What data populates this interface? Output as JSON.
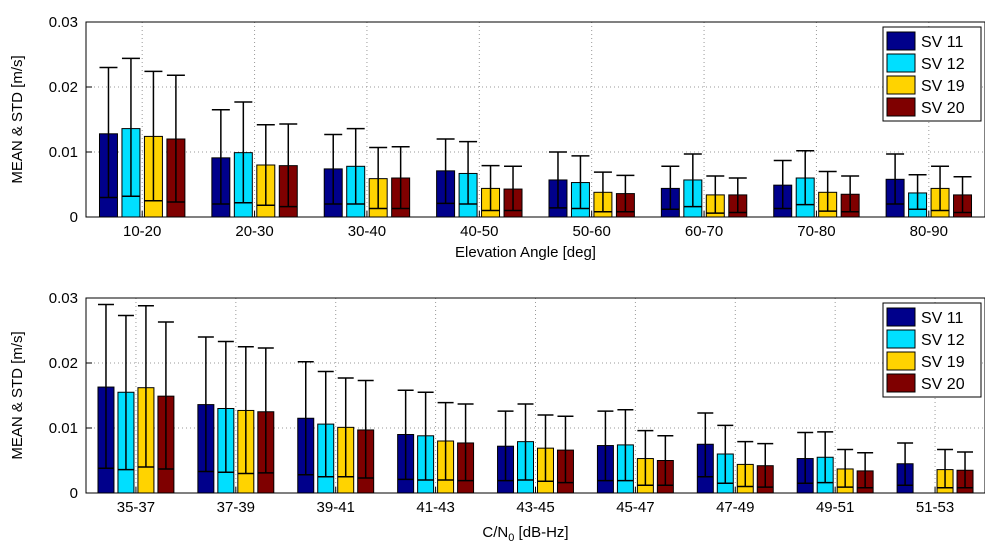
{
  "chart_data": [
    {
      "type": "bar",
      "title": "",
      "xlabel": "Elevation Angle [deg]",
      "ylabel": "MEAN & STD [m/s]",
      "ylim": [
        0,
        0.03
      ],
      "yticks": [
        0,
        0.01,
        0.02,
        0.03
      ],
      "ytick_labels": [
        "0",
        "0.01",
        "0.02",
        "0.03"
      ],
      "grid": "dotted",
      "legend_position": "top-right",
      "categories": [
        "10-20",
        "20-30",
        "30-40",
        "40-50",
        "50-60",
        "60-70",
        "70-80",
        "80-90"
      ],
      "series": [
        {
          "name": "SV 11",
          "color": "#00008b",
          "values": [
            0.0128,
            0.0091,
            0.0074,
            0.0071,
            0.0057,
            0.0044,
            0.0049,
            0.0058
          ],
          "upper": [
            0.023,
            0.0165,
            0.0127,
            0.012,
            0.01,
            0.0078,
            0.0087,
            0.0097
          ],
          "lower": [
            0.003,
            0.002,
            0.002,
            0.0021,
            0.0014,
            0.0012,
            0.0013,
            0.002
          ]
        },
        {
          "name": "SV 12",
          "color": "#00dfff",
          "values": [
            0.0136,
            0.0099,
            0.0078,
            0.0067,
            0.0053,
            0.0057,
            0.006,
            0.0037
          ],
          "upper": [
            0.0244,
            0.0177,
            0.0136,
            0.0116,
            0.0094,
            0.0097,
            0.0102,
            0.0065
          ],
          "lower": [
            0.0032,
            0.0022,
            0.002,
            0.002,
            0.0013,
            0.0016,
            0.0019,
            0.0012
          ]
        },
        {
          "name": "SV 19",
          "color": "#ffd300",
          "values": [
            0.0124,
            0.008,
            0.0059,
            0.0044,
            0.0038,
            0.0034,
            0.0038,
            0.0044
          ],
          "upper": [
            0.0224,
            0.0142,
            0.0107,
            0.0079,
            0.0069,
            0.0063,
            0.007,
            0.0078
          ],
          "lower": [
            0.0025,
            0.0018,
            0.0013,
            0.001,
            0.0008,
            0.0006,
            0.0009,
            0.001
          ]
        },
        {
          "name": "SV 20",
          "color": "#7f0000",
          "values": [
            0.012,
            0.0079,
            0.006,
            0.0043,
            0.0036,
            0.0034,
            0.0035,
            0.0034
          ],
          "upper": [
            0.0218,
            0.0143,
            0.0108,
            0.0078,
            0.0064,
            0.006,
            0.0063,
            0.0062
          ],
          "lower": [
            0.0023,
            0.0016,
            0.0013,
            0.001,
            0.0008,
            0.0007,
            0.0008,
            0.0007
          ]
        }
      ]
    },
    {
      "type": "bar",
      "title": "",
      "xlabel": "C/N",
      "xlabel_sub": "0",
      "xlabel_unit": "[dB-Hz]",
      "ylabel": "MEAN & STD [m/s]",
      "ylim": [
        0,
        0.03
      ],
      "yticks": [
        0,
        0.01,
        0.02,
        0.03
      ],
      "ytick_labels": [
        "0",
        "0.01",
        "0.02",
        "0.03"
      ],
      "grid": "dotted",
      "legend_position": "top-right",
      "categories": [
        "35-37",
        "37-39",
        "39-41",
        "41-43",
        "43-45",
        "45-47",
        "47-49",
        "49-51",
        "51-53"
      ],
      "series": [
        {
          "name": "SV 11",
          "color": "#00008b",
          "values": [
            0.0163,
            0.0136,
            0.0115,
            0.009,
            0.0072,
            0.0073,
            0.0075,
            0.0053,
            0.0045
          ],
          "upper": [
            0.029,
            0.024,
            0.0202,
            0.0158,
            0.0126,
            0.0126,
            0.0123,
            0.0093,
            0.0077
          ],
          "lower": [
            0.0038,
            0.0033,
            0.0028,
            0.0021,
            0.0019,
            0.0019,
            0.0025,
            0.0015,
            0.0012
          ]
        },
        {
          "name": "SV 12",
          "color": "#00dfff",
          "values": [
            0.0155,
            0.013,
            0.0106,
            0.0088,
            0.0079,
            0.0074,
            0.006,
            0.0055,
            null
          ],
          "upper": [
            0.0273,
            0.0233,
            0.0187,
            0.0155,
            0.0137,
            0.0128,
            0.0104,
            0.0094,
            null
          ],
          "lower": [
            0.0036,
            0.0032,
            0.0025,
            0.002,
            0.002,
            0.0019,
            0.0015,
            0.0016,
            null
          ]
        },
        {
          "name": "SV 19",
          "color": "#ffd300",
          "values": [
            0.0162,
            0.0127,
            0.0101,
            0.008,
            0.0069,
            0.0053,
            0.0044,
            0.0037,
            0.0036
          ],
          "upper": [
            0.0288,
            0.0225,
            0.0177,
            0.0139,
            0.012,
            0.0096,
            0.0079,
            0.0067,
            0.0067
          ],
          "lower": [
            0.004,
            0.003,
            0.0025,
            0.002,
            0.0018,
            0.0012,
            0.001,
            0.0009,
            0.0008
          ]
        },
        {
          "name": "SV 20",
          "color": "#7f0000",
          "values": [
            0.0149,
            0.0125,
            0.0097,
            0.0077,
            0.0066,
            0.005,
            0.0042,
            0.0034,
            0.0035
          ],
          "upper": [
            0.0263,
            0.0223,
            0.0173,
            0.0137,
            0.0118,
            0.0088,
            0.0076,
            0.0062,
            0.0063
          ],
          "lower": [
            0.0037,
            0.0031,
            0.0023,
            0.0019,
            0.0016,
            0.0012,
            0.0009,
            0.0008,
            0.0008
          ]
        }
      ]
    }
  ]
}
